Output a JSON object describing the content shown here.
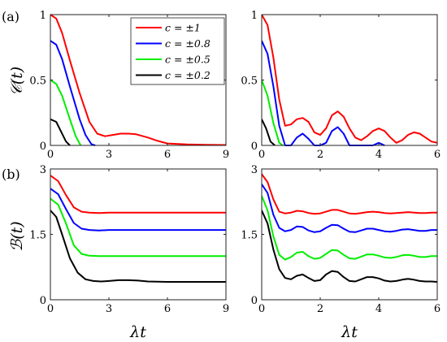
{
  "panel_labels": [
    "(a)",
    "(b)"
  ],
  "xlabel": "λt",
  "ylabel_top": "𝒞(t)",
  "ylabel_bottom": "ℬ(t)",
  "legend": [
    "c = ±1",
    "c = ±0.8",
    "c = ±0.5",
    "c = ±0.2"
  ],
  "colors": [
    "#ff0000",
    "#0000ff",
    "#00ee00",
    "#000000"
  ],
  "chart_data": [
    {
      "type": "line",
      "panel": "top-left",
      "ylabel": "𝒞(t)",
      "xlim": [
        0,
        9
      ],
      "ylim": [
        0,
        1
      ],
      "xticks": [
        0,
        3,
        6,
        9
      ],
      "yticks": [
        0,
        0.5,
        1
      ],
      "xtick_labels": [
        "0",
        "3",
        "6",
        "9"
      ],
      "ytick_labels": [
        "0",
        "0.5",
        "1"
      ],
      "legend_position": "top-right",
      "series": [
        {
          "name": "c = ±1",
          "x": [
            0,
            0.3,
            0.6,
            1.0,
            1.5,
            2.0,
            2.4,
            2.8,
            3.2,
            3.6,
            4.0,
            4.4,
            5.0,
            5.5,
            6.0,
            7.0,
            8.0,
            9.0
          ],
          "y": [
            1.0,
            0.97,
            0.86,
            0.65,
            0.4,
            0.18,
            0.09,
            0.07,
            0.08,
            0.09,
            0.09,
            0.085,
            0.06,
            0.035,
            0.015,
            0.008,
            0.005,
            0.003
          ]
        },
        {
          "name": "c = ±0.8",
          "x": [
            0,
            0.3,
            0.6,
            1.0,
            1.5,
            1.8,
            2.1,
            2.3
          ],
          "y": [
            0.8,
            0.77,
            0.66,
            0.45,
            0.2,
            0.08,
            0.01,
            0.0
          ]
        },
        {
          "name": "c = ±0.5",
          "x": [
            0,
            0.3,
            0.6,
            1.0,
            1.3,
            1.55
          ],
          "y": [
            0.5,
            0.47,
            0.38,
            0.2,
            0.07,
            0.0
          ]
        },
        {
          "name": "c = ±0.2",
          "x": [
            0,
            0.3,
            0.5,
            0.8,
            1.0
          ],
          "y": [
            0.2,
            0.18,
            0.12,
            0.03,
            0.0
          ]
        }
      ]
    },
    {
      "type": "line",
      "panel": "top-right",
      "ylabel": "",
      "xlim": [
        0,
        6
      ],
      "ylim": [
        0,
        1
      ],
      "xticks": [
        0,
        2,
        4,
        6
      ],
      "yticks": [
        0,
        0.5,
        1
      ],
      "xtick_labels": [
        "0",
        "2",
        "4",
        "6"
      ],
      "ytick_labels": [
        "0",
        "0.5",
        "1"
      ],
      "series": [
        {
          "name": "c = ±1",
          "x": [
            0,
            0.2,
            0.4,
            0.6,
            0.8,
            1.0,
            1.2,
            1.4,
            1.6,
            1.8,
            2.0,
            2.2,
            2.4,
            2.6,
            2.8,
            3.0,
            3.2,
            3.4,
            3.6,
            3.8,
            4.0,
            4.2,
            4.4,
            4.6,
            4.8,
            5.0,
            5.2,
            5.4,
            5.6,
            5.8,
            6.0
          ],
          "y": [
            1.0,
            0.92,
            0.67,
            0.35,
            0.15,
            0.16,
            0.2,
            0.21,
            0.18,
            0.1,
            0.08,
            0.13,
            0.23,
            0.26,
            0.22,
            0.13,
            0.06,
            0.04,
            0.07,
            0.11,
            0.13,
            0.11,
            0.06,
            0.02,
            0.04,
            0.08,
            0.1,
            0.09,
            0.06,
            0.03,
            0.02
          ]
        },
        {
          "name": "c = ±0.8",
          "x": [
            0,
            0.2,
            0.4,
            0.6,
            0.8,
            1.0,
            1.2,
            1.4,
            1.6,
            1.8,
            2.0,
            2.2,
            2.4,
            2.6,
            2.8,
            3.0,
            3.2,
            3.4,
            3.6,
            3.8,
            4.0,
            4.2
          ],
          "y": [
            0.8,
            0.7,
            0.45,
            0.15,
            0.0,
            0.0,
            0.06,
            0.09,
            0.05,
            0.0,
            0.0,
            0.02,
            0.11,
            0.14,
            0.09,
            0.0,
            0.0,
            0.0,
            0.0,
            0.0,
            0.02,
            0.0
          ]
        },
        {
          "name": "c = ±0.5",
          "x": [
            0,
            0.2,
            0.4,
            0.6,
            0.72
          ],
          "y": [
            0.5,
            0.38,
            0.17,
            0.02,
            0.0
          ]
        },
        {
          "name": "c = ±0.2",
          "x": [
            0,
            0.15,
            0.3,
            0.45
          ],
          "y": [
            0.2,
            0.13,
            0.03,
            0.0
          ]
        }
      ]
    },
    {
      "type": "line",
      "panel": "bottom-left",
      "ylabel": "ℬ(t)",
      "xlim": [
        0,
        9
      ],
      "ylim": [
        0,
        3
      ],
      "xticks": [
        0,
        3,
        6,
        9
      ],
      "yticks": [
        0,
        1.5,
        3
      ],
      "xtick_labels": [
        "0",
        "3",
        "6",
        "9"
      ],
      "ytick_labels": [
        "0",
        "1.5",
        "3"
      ],
      "series": [
        {
          "name": "c = ±1",
          "x": [
            0,
            0.4,
            0.8,
            1.2,
            1.6,
            2.0,
            2.5,
            3.0,
            9.0
          ],
          "y": [
            2.85,
            2.72,
            2.4,
            2.12,
            2.02,
            2.0,
            1.99,
            2.0,
            2.0
          ]
        },
        {
          "name": "c = ±0.8",
          "x": [
            0,
            0.4,
            0.8,
            1.2,
            1.6,
            2.0,
            2.5,
            3.0,
            9.0
          ],
          "y": [
            2.55,
            2.42,
            2.08,
            1.76,
            1.63,
            1.6,
            1.59,
            1.6,
            1.6
          ]
        },
        {
          "name": "c = ±0.5",
          "x": [
            0,
            0.4,
            0.8,
            1.2,
            1.6,
            2.0,
            2.5,
            3.0,
            9.0
          ],
          "y": [
            2.32,
            2.18,
            1.75,
            1.25,
            1.05,
            1.01,
            1.0,
            1.0,
            1.0
          ]
        },
        {
          "name": "c = ±0.2",
          "x": [
            0,
            0.3,
            0.6,
            1.0,
            1.4,
            1.8,
            2.2,
            2.6,
            3.0,
            3.5,
            4.0,
            4.5,
            5.0,
            6.0,
            9.0
          ],
          "y": [
            2.05,
            1.9,
            1.5,
            0.95,
            0.62,
            0.47,
            0.43,
            0.42,
            0.43,
            0.45,
            0.45,
            0.44,
            0.42,
            0.41,
            0.41
          ]
        }
      ]
    },
    {
      "type": "line",
      "panel": "bottom-right",
      "ylabel": "",
      "xlim": [
        0,
        6
      ],
      "ylim": [
        0,
        3
      ],
      "xticks": [
        0,
        2,
        4,
        6
      ],
      "yticks": [
        0,
        1.5,
        3
      ],
      "xtick_labels": [
        "0",
        "2",
        "4",
        "6"
      ],
      "ytick_labels": [
        "0",
        "1.5",
        "3"
      ],
      "series": [
        {
          "name": "c = ±1",
          "x": [
            0,
            0.2,
            0.4,
            0.6,
            0.8,
            1.0,
            1.2,
            1.4,
            1.6,
            1.8,
            2.0,
            2.2,
            2.4,
            2.6,
            2.8,
            3.0,
            3.2,
            3.4,
            3.6,
            3.8,
            4.0,
            4.2,
            4.4,
            4.6,
            4.8,
            5.0,
            5.2,
            5.4,
            5.6,
            5.8,
            6.0
          ],
          "y": [
            2.88,
            2.7,
            2.3,
            2.02,
            1.98,
            2.0,
            2.04,
            2.03,
            1.99,
            1.97,
            1.98,
            2.02,
            2.06,
            2.06,
            2.02,
            1.98,
            1.97,
            1.99,
            2.01,
            2.02,
            2.01,
            1.99,
            1.98,
            1.99,
            2.0,
            2.01,
            2.0,
            1.99,
            1.99,
            2.0,
            2.0
          ]
        },
        {
          "name": "c = ±0.8",
          "x": [
            0,
            0.2,
            0.4,
            0.6,
            0.8,
            1.0,
            1.2,
            1.4,
            1.6,
            1.8,
            2.0,
            2.2,
            2.4,
            2.6,
            2.8,
            3.0,
            3.2,
            3.4,
            3.6,
            3.8,
            4.0,
            4.2,
            4.4,
            4.6,
            4.8,
            5.0,
            5.2,
            5.4,
            5.6,
            5.8,
            6.0
          ],
          "y": [
            2.65,
            2.45,
            1.95,
            1.65,
            1.57,
            1.6,
            1.68,
            1.67,
            1.59,
            1.55,
            1.57,
            1.65,
            1.72,
            1.71,
            1.63,
            1.56,
            1.55,
            1.59,
            1.63,
            1.63,
            1.6,
            1.57,
            1.56,
            1.58,
            1.61,
            1.62,
            1.6,
            1.58,
            1.58,
            1.6,
            1.6
          ]
        },
        {
          "name": "c = ±0.5",
          "x": [
            0,
            0.2,
            0.4,
            0.6,
            0.8,
            1.0,
            1.2,
            1.4,
            1.6,
            1.8,
            2.0,
            2.2,
            2.4,
            2.6,
            2.8,
            3.0,
            3.2,
            3.4,
            3.6,
            3.8,
            4.0,
            4.2,
            4.4,
            4.6,
            4.8,
            5.0,
            5.2,
            5.4,
            5.6,
            5.8,
            6.0
          ],
          "y": [
            2.38,
            2.05,
            1.45,
            1.03,
            0.92,
            0.98,
            1.08,
            1.1,
            1.0,
            0.94,
            0.96,
            1.05,
            1.14,
            1.13,
            1.03,
            0.95,
            0.94,
            0.99,
            1.04,
            1.04,
            1.01,
            0.97,
            0.96,
            0.98,
            1.02,
            1.03,
            1.01,
            0.98,
            0.98,
            1.0,
            1.0
          ]
        },
        {
          "name": "c = ±0.2",
          "x": [
            0,
            0.2,
            0.4,
            0.6,
            0.8,
            1.0,
            1.2,
            1.4,
            1.6,
            1.8,
            2.0,
            2.2,
            2.4,
            2.6,
            2.8,
            3.0,
            3.2,
            3.4,
            3.6,
            3.8,
            4.0,
            4.2,
            4.4,
            4.6,
            4.8,
            5.0,
            5.2,
            5.4,
            5.6,
            5.8,
            6.0
          ],
          "y": [
            2.05,
            1.75,
            1.15,
            0.7,
            0.5,
            0.47,
            0.55,
            0.58,
            0.5,
            0.43,
            0.45,
            0.58,
            0.66,
            0.64,
            0.52,
            0.43,
            0.42,
            0.47,
            0.52,
            0.52,
            0.49,
            0.44,
            0.42,
            0.43,
            0.46,
            0.48,
            0.46,
            0.43,
            0.42,
            0.42,
            0.41
          ]
        }
      ]
    }
  ]
}
